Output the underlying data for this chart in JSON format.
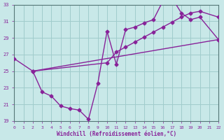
{
  "xlabel": "Windchill (Refroidissement éolien,°C)",
  "bg_color": "#c8e8e8",
  "grid_color": "#a0cccc",
  "line_color": "#882299",
  "xlim": [
    0,
    22
  ],
  "ylim": [
    19,
    33
  ],
  "xticks": [
    0,
    1,
    2,
    3,
    4,
    5,
    6,
    7,
    8,
    9,
    10,
    11,
    12,
    13,
    14,
    15,
    16,
    17,
    18,
    19,
    20,
    21,
    22
  ],
  "yticks": [
    19,
    21,
    23,
    25,
    27,
    29,
    31,
    33
  ],
  "line1_x": [
    0,
    2,
    3,
    4,
    5,
    6,
    7,
    8,
    9,
    10,
    11,
    12,
    13,
    14,
    15,
    16,
    17,
    18,
    19,
    20,
    22
  ],
  "line1_y": [
    26.5,
    25.0,
    22.5,
    22.0,
    20.8,
    20.5,
    20.3,
    19.2,
    23.5,
    29.8,
    25.8,
    30.0,
    30.3,
    30.8,
    31.2,
    33.4,
    33.8,
    32.0,
    31.2,
    31.5,
    28.8
  ],
  "line2_x": [
    2,
    10,
    11,
    12,
    13,
    14,
    15,
    16,
    17,
    18,
    19,
    20,
    22
  ],
  "line2_y": [
    25.0,
    26.0,
    27.3,
    27.9,
    28.5,
    29.1,
    29.7,
    30.3,
    30.9,
    31.5,
    32.0,
    32.2,
    31.5
  ],
  "line3_x": [
    2,
    22
  ],
  "line3_y": [
    25.0,
    28.8
  ],
  "markersize": 2.5,
  "linewidth": 1.0
}
